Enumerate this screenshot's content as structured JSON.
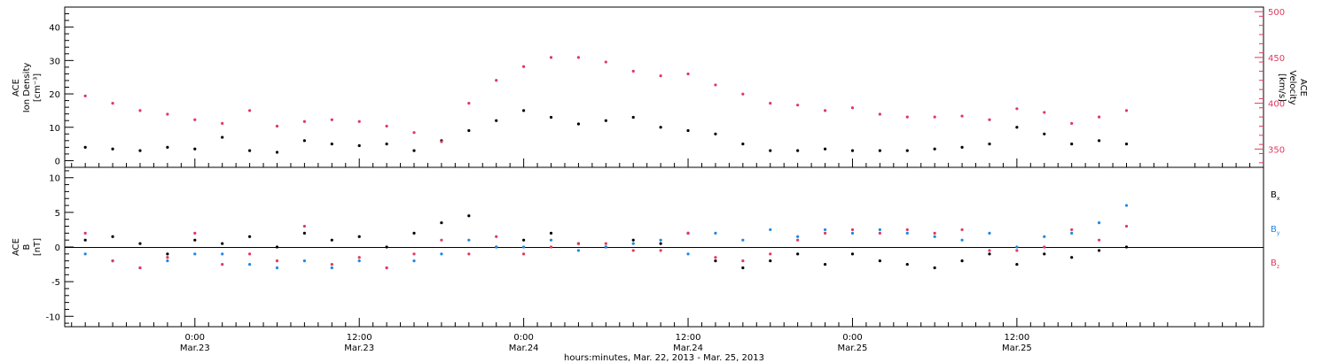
{
  "colors": {
    "black": "#000000",
    "red": "#e0395f",
    "blue": "#1e88e5"
  },
  "chart_data": [
    {
      "type": "scatter",
      "panel": "top",
      "ylabel_left": [
        "ACE",
        "Ion Density",
        "[cm⁻³]"
      ],
      "ylabel_right": [
        "ACE",
        "Velocity",
        "[km/s]"
      ],
      "ylim_left": [
        -2,
        46
      ],
      "yticks_left": [
        "0",
        "10",
        "20",
        "30",
        "40"
      ],
      "ylim_right": [
        330,
        505
      ],
      "yticks_right": [
        "350",
        "400",
        "450",
        "500"
      ],
      "series": [
        {
          "axis": "left",
          "color": "black",
          "points": [
            [
              -8,
              4
            ],
            [
              -6,
              3.5
            ],
            [
              -4,
              3
            ],
            [
              -2,
              4
            ],
            [
              0,
              3.5
            ],
            [
              2,
              7
            ],
            [
              4,
              3
            ],
            [
              6,
              2.5
            ],
            [
              8,
              6
            ],
            [
              10,
              5
            ],
            [
              12,
              4.5
            ],
            [
              14,
              5
            ],
            [
              16,
              3
            ],
            [
              18,
              6
            ],
            [
              20,
              9
            ],
            [
              22,
              12
            ],
            [
              24,
              15
            ],
            [
              26,
              13
            ],
            [
              28,
              11
            ],
            [
              30,
              12
            ],
            [
              32,
              13
            ],
            [
              34,
              10
            ],
            [
              36,
              9
            ],
            [
              38,
              8
            ],
            [
              40,
              5
            ],
            [
              42,
              3
            ],
            [
              44,
              3
            ],
            [
              46,
              3.5
            ],
            [
              48,
              3
            ],
            [
              50,
              3
            ],
            [
              52,
              3
            ],
            [
              54,
              3.5
            ],
            [
              56,
              4
            ],
            [
              58,
              5
            ],
            [
              60,
              10
            ],
            [
              62,
              8
            ],
            [
              64,
              5
            ],
            [
              66,
              6
            ],
            [
              68,
              5
            ]
          ]
        },
        {
          "axis": "right",
          "color": "red",
          "points": [
            [
              -8,
              408
            ],
            [
              -6,
              400
            ],
            [
              -4,
              392
            ],
            [
              -2,
              388
            ],
            [
              0,
              382
            ],
            [
              2,
              378
            ],
            [
              4,
              392
            ],
            [
              6,
              375
            ],
            [
              8,
              380
            ],
            [
              10,
              382
            ],
            [
              12,
              380
            ],
            [
              14,
              375
            ],
            [
              16,
              368
            ],
            [
              18,
              358
            ],
            [
              20,
              400
            ],
            [
              22,
              425
            ],
            [
              24,
              440
            ],
            [
              26,
              450
            ],
            [
              28,
              450
            ],
            [
              30,
              445
            ],
            [
              32,
              435
            ],
            [
              34,
              430
            ],
            [
              36,
              432
            ],
            [
              38,
              420
            ],
            [
              40,
              410
            ],
            [
              42,
              400
            ],
            [
              44,
              398
            ],
            [
              46,
              392
            ],
            [
              48,
              395
            ],
            [
              50,
              388
            ],
            [
              52,
              385
            ],
            [
              54,
              385
            ],
            [
              56,
              386
            ],
            [
              58,
              382
            ],
            [
              60,
              394
            ],
            [
              62,
              390
            ],
            [
              64,
              378
            ],
            [
              66,
              385
            ],
            [
              68,
              392
            ]
          ]
        }
      ]
    },
    {
      "type": "scatter",
      "panel": "bottom",
      "ylabel": [
        "ACE",
        "B",
        "[nT]"
      ],
      "ylim": [
        -11.5,
        11.5
      ],
      "yticks": [
        "-10",
        "-5",
        "0",
        "5",
        "10"
      ],
      "xlabel": "hours:minutes, Mar. 22, 2013 - Mar. 25, 2013",
      "xlim_hours": [
        -9.5,
        78
      ],
      "xticks": [
        {
          "h": 0,
          "l1": "0:00",
          "l2": "Mar.23"
        },
        {
          "h": 12,
          "l1": "12:00",
          "l2": "Mar.23"
        },
        {
          "h": 24,
          "l1": "0:00",
          "l2": "Mar.24"
        },
        {
          "h": 36,
          "l1": "12:00",
          "l2": "Mar.24"
        },
        {
          "h": 48,
          "l1": "0:00",
          "l2": "Mar.25"
        },
        {
          "h": 60,
          "l1": "12:00",
          "l2": "Mar.25"
        }
      ],
      "legend": [
        "B",
        "B",
        "B"
      ],
      "legend_subscripts": [
        "x",
        "y",
        "z"
      ],
      "series": [
        {
          "name": "Bx",
          "color": "black",
          "points": [
            [
              -8,
              1
            ],
            [
              -6,
              1.5
            ],
            [
              -4,
              0.5
            ],
            [
              -2,
              -1
            ],
            [
              0,
              1
            ],
            [
              2,
              0.5
            ],
            [
              4,
              1.5
            ],
            [
              6,
              0
            ],
            [
              8,
              2
            ],
            [
              10,
              1
            ],
            [
              12,
              1.5
            ],
            [
              14,
              0
            ],
            [
              16,
              2
            ],
            [
              18,
              3.5
            ],
            [
              20,
              4.5
            ],
            [
              22,
              0
            ],
            [
              24,
              1
            ],
            [
              26,
              2
            ],
            [
              28,
              0.5
            ],
            [
              30,
              0
            ],
            [
              32,
              1
            ],
            [
              34,
              0.5
            ],
            [
              36,
              2
            ],
            [
              38,
              -2
            ],
            [
              40,
              -3
            ],
            [
              42,
              -2
            ],
            [
              44,
              -1
            ],
            [
              46,
              -2.5
            ],
            [
              48,
              -1
            ],
            [
              50,
              -2
            ],
            [
              52,
              -2.5
            ],
            [
              54,
              -3
            ],
            [
              56,
              -2
            ],
            [
              58,
              -1
            ],
            [
              60,
              -2.5
            ],
            [
              62,
              -1
            ],
            [
              64,
              -1.5
            ],
            [
              66,
              -0.5
            ],
            [
              68,
              0
            ]
          ]
        },
        {
          "name": "By",
          "color": "blue",
          "points": [
            [
              -8,
              -1
            ],
            [
              -6,
              -2
            ],
            [
              -4,
              -3
            ],
            [
              -2,
              -2
            ],
            [
              0,
              -1
            ],
            [
              2,
              -1
            ],
            [
              4,
              -2.5
            ],
            [
              6,
              -3
            ],
            [
              8,
              -2
            ],
            [
              10,
              -3
            ],
            [
              12,
              -2
            ],
            [
              14,
              -3
            ],
            [
              16,
              -2
            ],
            [
              18,
              -1
            ],
            [
              20,
              1
            ],
            [
              22,
              0
            ],
            [
              24,
              0
            ],
            [
              26,
              1
            ],
            [
              28,
              -0.5
            ],
            [
              30,
              0
            ],
            [
              32,
              0.5
            ],
            [
              34,
              1
            ],
            [
              36,
              -1
            ],
            [
              38,
              2
            ],
            [
              40,
              1
            ],
            [
              42,
              2.5
            ],
            [
              44,
              1.5
            ],
            [
              46,
              2.5
            ],
            [
              48,
              2
            ],
            [
              50,
              2.5
            ],
            [
              52,
              2
            ],
            [
              54,
              1.5
            ],
            [
              56,
              1
            ],
            [
              58,
              2
            ],
            [
              60,
              0
            ],
            [
              62,
              1.5
            ],
            [
              64,
              2
            ],
            [
              66,
              3.5
            ],
            [
              68,
              6
            ]
          ]
        },
        {
          "name": "Bz",
          "color": "red",
          "points": [
            [
              -8,
              2
            ],
            [
              -6,
              -2
            ],
            [
              -4,
              -3
            ],
            [
              -2,
              -1.5
            ],
            [
              0,
              2
            ],
            [
              2,
              -2.5
            ],
            [
              4,
              -1
            ],
            [
              6,
              -2
            ],
            [
              8,
              3
            ],
            [
              10,
              -2.5
            ],
            [
              12,
              -1.5
            ],
            [
              14,
              -3
            ],
            [
              16,
              -1
            ],
            [
              18,
              1
            ],
            [
              20,
              -1
            ],
            [
              22,
              1.5
            ],
            [
              24,
              -1
            ],
            [
              26,
              0
            ],
            [
              28,
              0.5
            ],
            [
              30,
              0.5
            ],
            [
              32,
              -0.5
            ],
            [
              34,
              -0.5
            ],
            [
              36,
              2
            ],
            [
              38,
              -1.5
            ],
            [
              40,
              -2
            ],
            [
              42,
              -1
            ],
            [
              44,
              1
            ],
            [
              46,
              2
            ],
            [
              48,
              2.5
            ],
            [
              50,
              2
            ],
            [
              52,
              2.5
            ],
            [
              54,
              2
            ],
            [
              56,
              2.5
            ],
            [
              58,
              -0.5
            ],
            [
              60,
              -0.5
            ],
            [
              62,
              0
            ],
            [
              64,
              2.5
            ],
            [
              66,
              1
            ],
            [
              68,
              3
            ]
          ]
        }
      ]
    }
  ]
}
